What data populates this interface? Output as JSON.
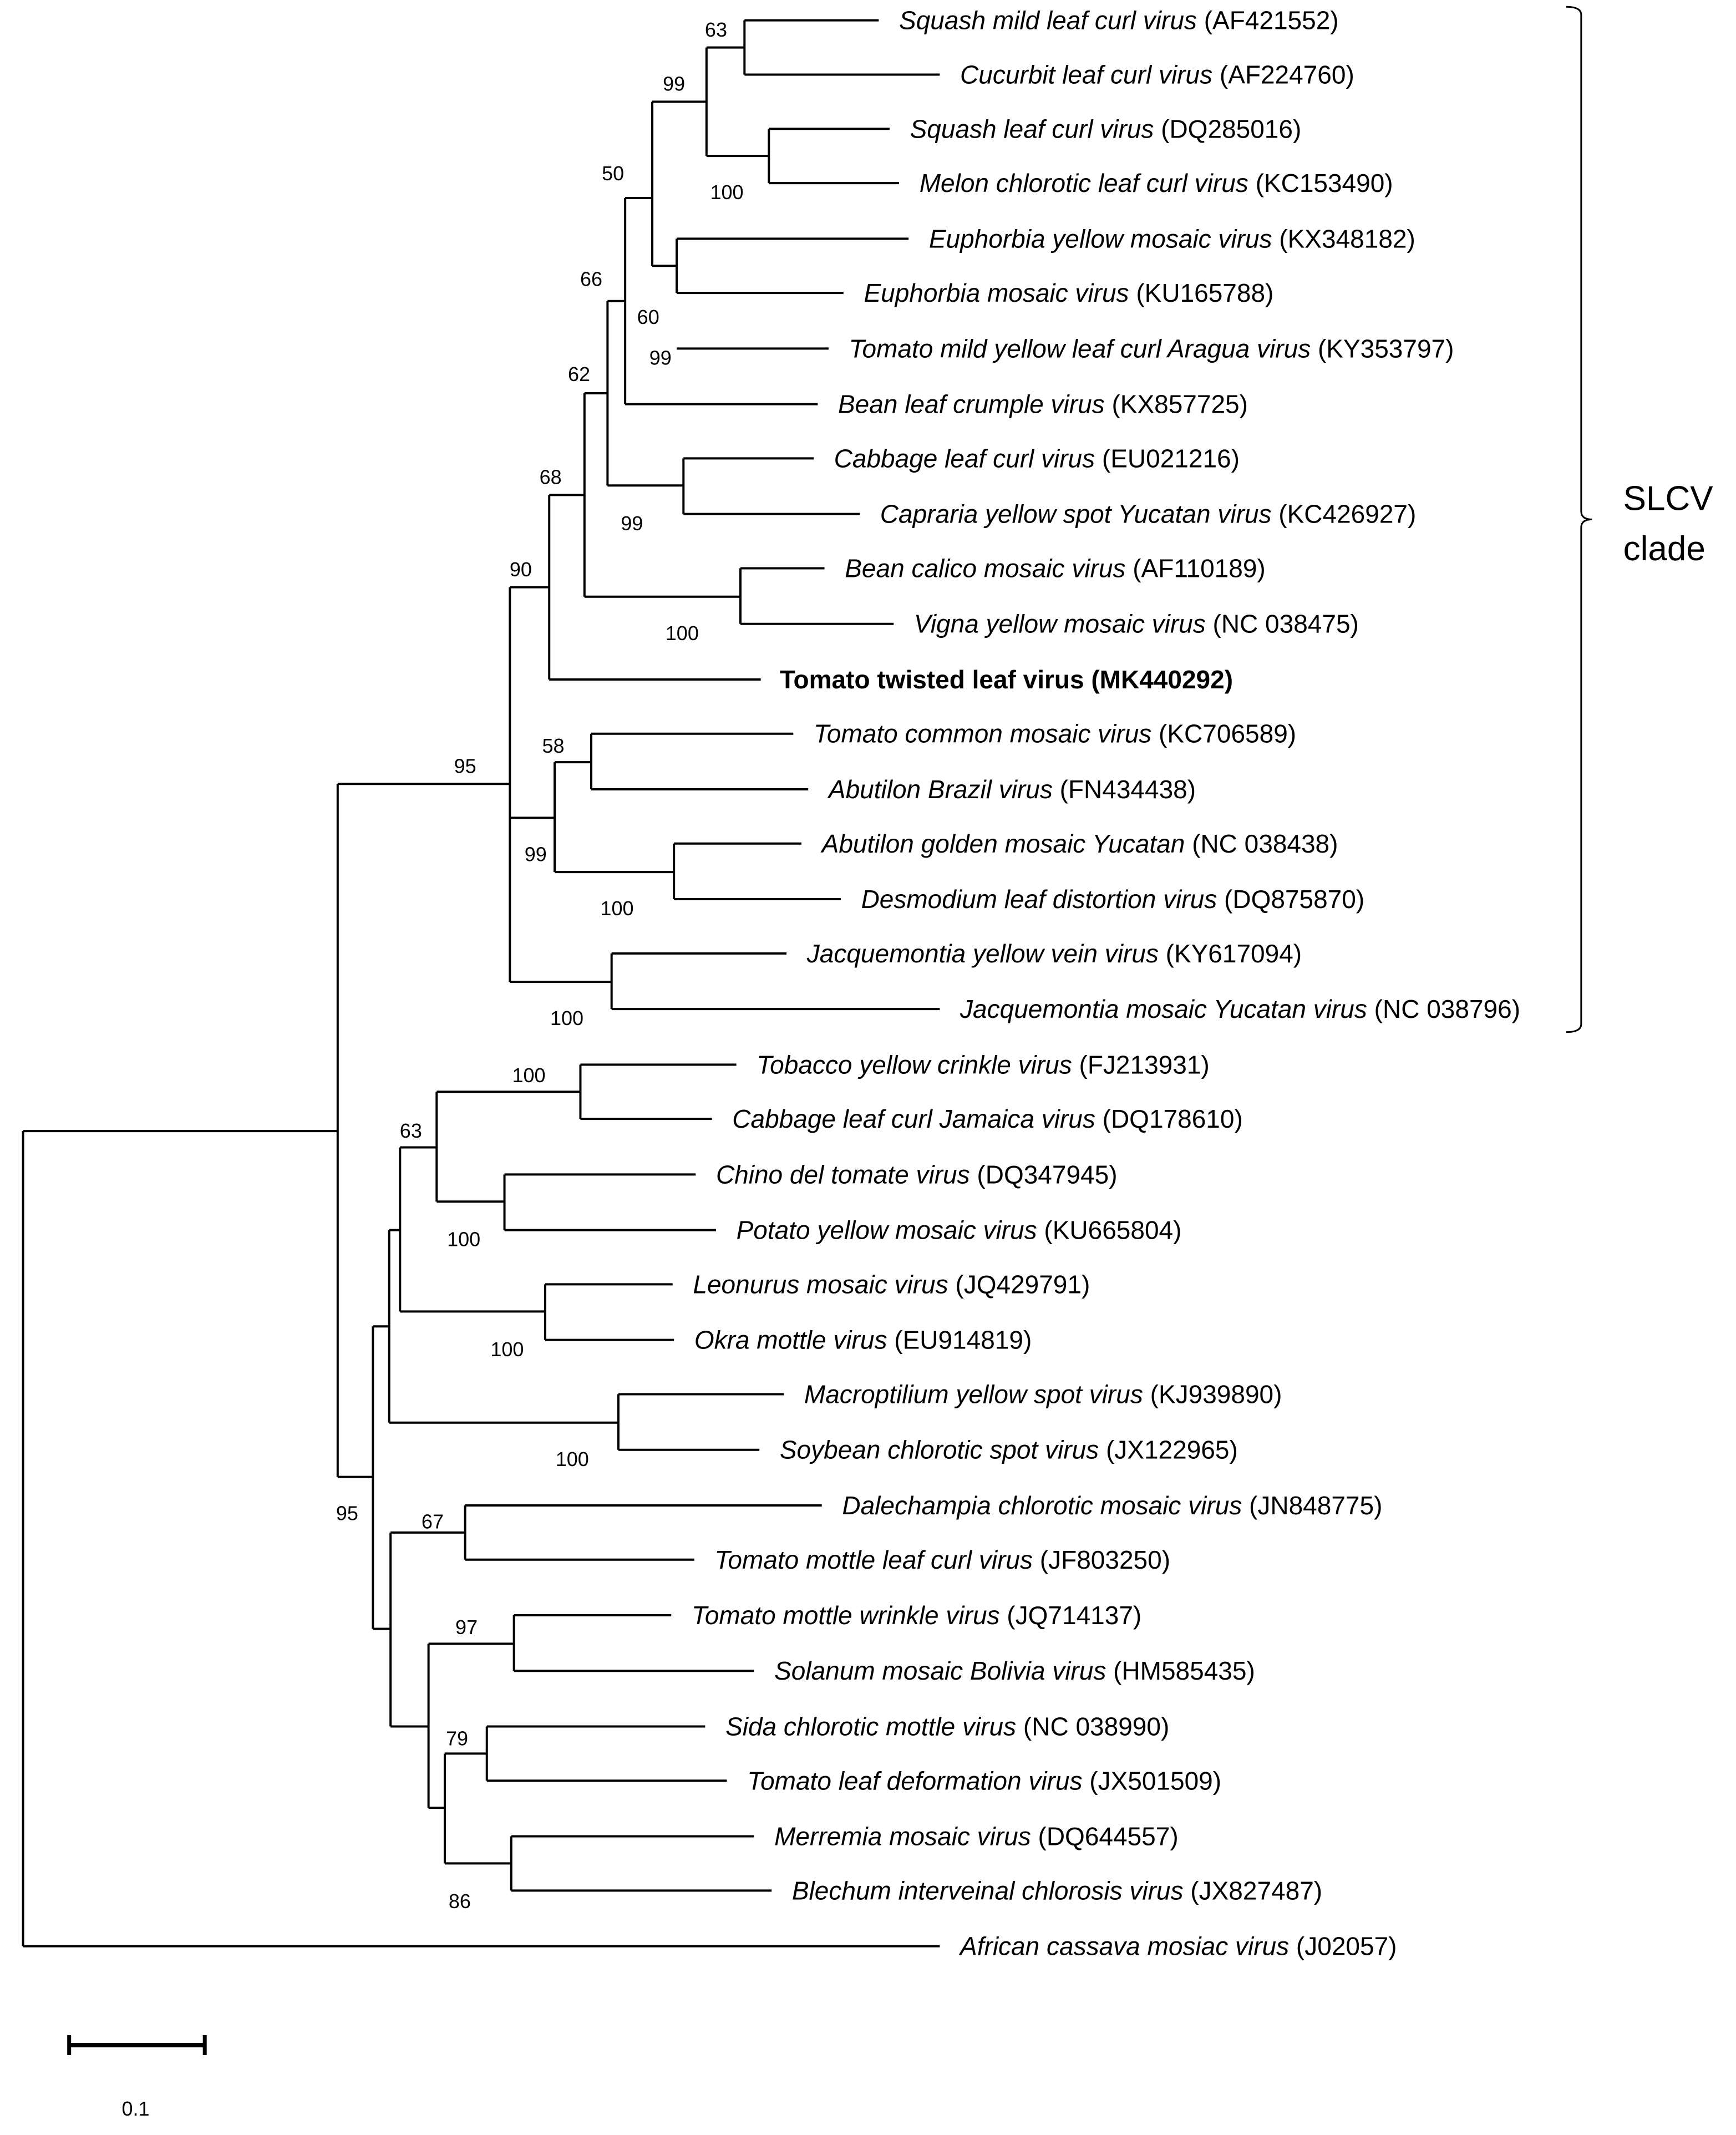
{
  "chart_data": {
    "type": "phylogenetic-tree",
    "scale_bar": {
      "length": 0.1,
      "label": "0.1"
    },
    "clade_bracket": {
      "label_line1": "SLCV",
      "label_line2": "clade"
    },
    "taxa": [
      {
        "name": "Squash mild leaf curl virus",
        "accession": "(AF421552)"
      },
      {
        "name": "Cucurbit leaf curl virus",
        "accession": "(AF224760)"
      },
      {
        "name": "Squash leaf curl virus",
        "accession": "(DQ285016)"
      },
      {
        "name": "Melon chlorotic leaf curl virus",
        "accession": "(KC153490)"
      },
      {
        "name": "Euphorbia yellow mosaic virus",
        "accession": "(KX348182)"
      },
      {
        "name": "Euphorbia mosaic virus",
        "accession": "(KU165788)"
      },
      {
        "name": "Tomato mild yellow leaf curl Aragua virus",
        "accession": "(KY353797)"
      },
      {
        "name": "Bean leaf crumple virus",
        "accession": "(KX857725)"
      },
      {
        "name": "Cabbage leaf curl virus",
        "accession": "(EU021216)"
      },
      {
        "name": "Capraria yellow spot Yucatan virus",
        "accession": "(KC426927)"
      },
      {
        "name": "Bean calico mosaic virus",
        "accession": "(AF110189)"
      },
      {
        "name": "Vigna yellow mosaic virus",
        "accession": "(NC 038475)"
      },
      {
        "name": "Tomato twisted leaf virus (MK440292)",
        "accession": "",
        "bold": true
      },
      {
        "name": "Tomato common mosaic virus",
        "accession": "(KC706589)"
      },
      {
        "name": "Abutilon Brazil virus",
        "accession": "(FN434438)"
      },
      {
        "name": "Abutilon golden mosaic Yucatan",
        "accession": "(NC 038438)"
      },
      {
        "name": "Desmodium leaf distortion virus",
        "accession": "(DQ875870)"
      },
      {
        "name": "Jacquemontia yellow vein virus",
        "accession": "(KY617094)"
      },
      {
        "name": "Jacquemontia mosaic Yucatan virus",
        "accession": "(NC 038796)"
      },
      {
        "name": "Tobacco yellow crinkle virus",
        "accession": "(FJ213931)"
      },
      {
        "name": "Cabbage leaf curl Jamaica virus",
        "accession": "(DQ178610)"
      },
      {
        "name": "Chino del tomate virus",
        "accession": "(DQ347945)"
      },
      {
        "name": "Potato yellow mosaic virus",
        "accession": "(KU665804)"
      },
      {
        "name": "Leonurus mosaic virus",
        "accession": "(JQ429791)"
      },
      {
        "name": "Okra mottle virus",
        "accession": "(EU914819)"
      },
      {
        "name": "Macroptilium yellow spot virus",
        "accession": "(KJ939890)"
      },
      {
        "name": "Soybean chlorotic spot virus",
        "accession": "(JX122965)"
      },
      {
        "name": "Dalechampia chlorotic mosaic virus",
        "accession": "(JN848775)"
      },
      {
        "name": "Tomato mottle leaf curl virus",
        "accession": "(JF803250)"
      },
      {
        "name": "Tomato mottle wrinkle virus",
        "accession": "(JQ714137)"
      },
      {
        "name": "Solanum mosaic Bolivia virus",
        "accession": "(HM585435)"
      },
      {
        "name": "Sida chlorotic mottle virus",
        "accession": "(NC 038990)"
      },
      {
        "name": "Tomato leaf deformation virus",
        "accession": "(JX501509)"
      },
      {
        "name": "Merremia mosaic virus",
        "accession": "(DQ644557)"
      },
      {
        "name": "Blechum interveinal chlorosis virus",
        "accession": "(JX827487)"
      },
      {
        "name": "African cassava mosiac virus",
        "accession": "(J02057)"
      }
    ],
    "bootstrap_values": [
      "63",
      "99",
      "100",
      "50",
      "66",
      "60",
      "99",
      "62",
      "99",
      "68",
      "100",
      "90",
      "58",
      "100",
      "99",
      "100",
      "95",
      "100",
      "63",
      "100",
      "100",
      "100",
      "67",
      "95",
      "97",
      "79",
      "86"
    ]
  }
}
